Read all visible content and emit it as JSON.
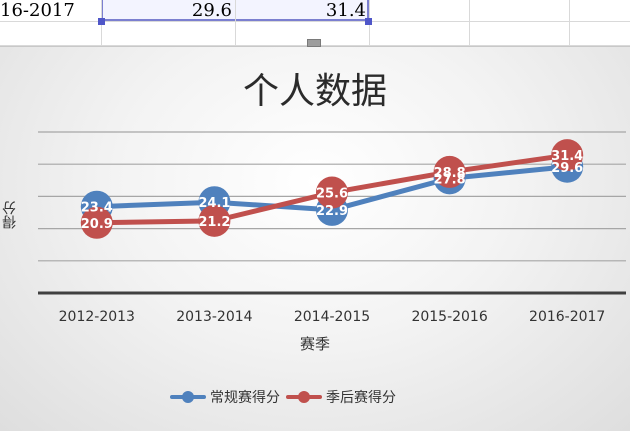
{
  "sheet": {
    "row": [
      "16-2017",
      "29.6",
      "31.4"
    ]
  },
  "chart_data": {
    "type": "line",
    "title": "个人数据",
    "xlabel": "赛季",
    "ylabel": "得分",
    "categories": [
      "2012-2013",
      "2013-2014",
      "2014-2015",
      "2015-2016",
      "2016-2017"
    ],
    "ylim": [
      10,
      35
    ],
    "grid": true,
    "legend": "bottom",
    "series": [
      {
        "name": "常规赛得分",
        "values": [
          23.4,
          24.1,
          22.9,
          27.8,
          29.6
        ],
        "color": "#4f81bd"
      },
      {
        "name": "季后赛得分",
        "values": [
          20.9,
          21.2,
          25.6,
          28.8,
          31.4
        ],
        "color": "#c0504d"
      }
    ]
  }
}
